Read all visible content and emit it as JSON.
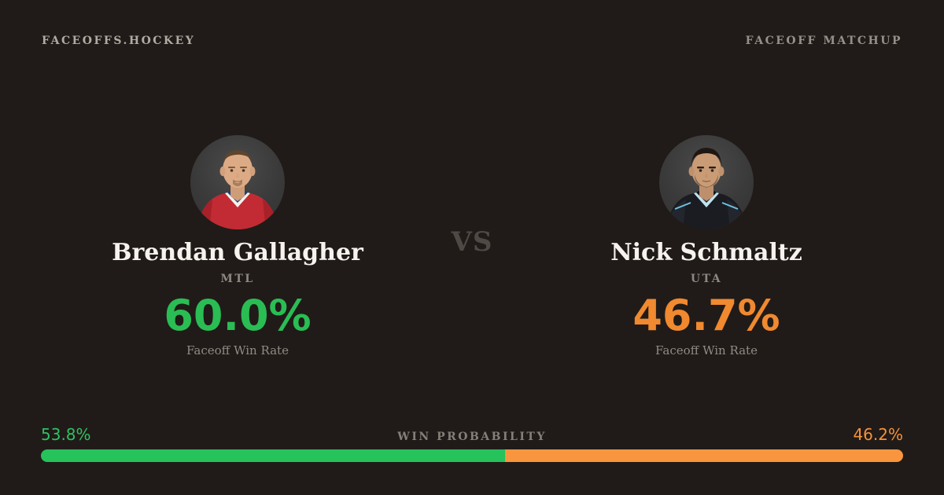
{
  "brand": {
    "site_name": "FACEOFFS.HOCKEY",
    "page_label": "FACEOFF MATCHUP"
  },
  "matchup": {
    "vs_label": "VS",
    "players": [
      {
        "name": "Brendan Gallagher",
        "team": "MTL",
        "faceoff_win_rate": "60.0%",
        "stat_label": "Faceoff Win Rate",
        "accent_color": "#2abd54",
        "photo": "player-headshot-red-jersey"
      },
      {
        "name": "Nick Schmaltz",
        "team": "UTA",
        "faceoff_win_rate": "46.7%",
        "stat_label": "Faceoff Win Rate",
        "accent_color": "#f0892f",
        "photo": "player-headshot-dark-jersey"
      }
    ]
  },
  "win_probability": {
    "label": "WIN PROBABILITY",
    "left": {
      "value": "53.8%",
      "color": "#26c25c"
    },
    "right": {
      "value": "46.2%",
      "color": "#f9953e"
    }
  },
  "colors": {
    "background": "#201b18",
    "green_text": "#2abd54",
    "orange_text": "#f0892f",
    "bar_green": "#26c25c",
    "bar_orange": "#f9953e"
  }
}
